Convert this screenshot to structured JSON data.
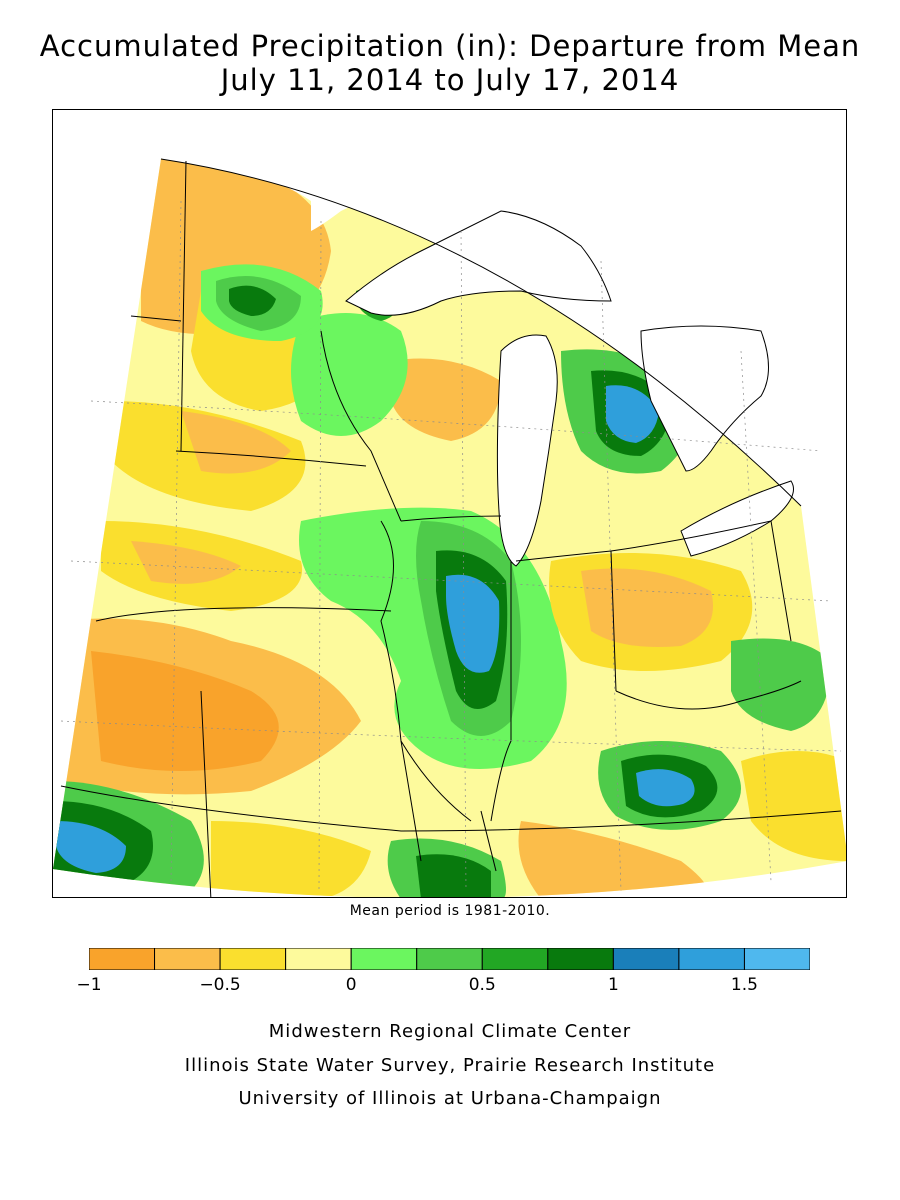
{
  "title_line1": "Accumulated Precipitation (in): Departure from Mean",
  "title_line2": "July 11, 2014 to July 17, 2014",
  "mean_note": "Mean period is 1981-2010.",
  "legend": {
    "colors": [
      "#f9a32b",
      "#fbbd4a",
      "#fadf2e",
      "#fdfa9c",
      "#6bf65f",
      "#4ecb4a",
      "#22a724",
      "#087a0d",
      "#1a7fba",
      "#2f9fdb",
      "#4fb8ee"
    ],
    "bin_edges": [
      -1,
      -0.75,
      -0.5,
      -0.25,
      0,
      0.25,
      0.5,
      0.75,
      1,
      1.25,
      1.5,
      1.75
    ],
    "tick_labels": [
      "-1",
      "-0.5",
      "0",
      "0.5",
      "1",
      "1.5"
    ]
  },
  "credits": [
    "Midwestern Regional Climate Center",
    "Illinois State Water Survey, Prairie Research Institute",
    "University of Illinois at Urbana-Champaign"
  ]
}
